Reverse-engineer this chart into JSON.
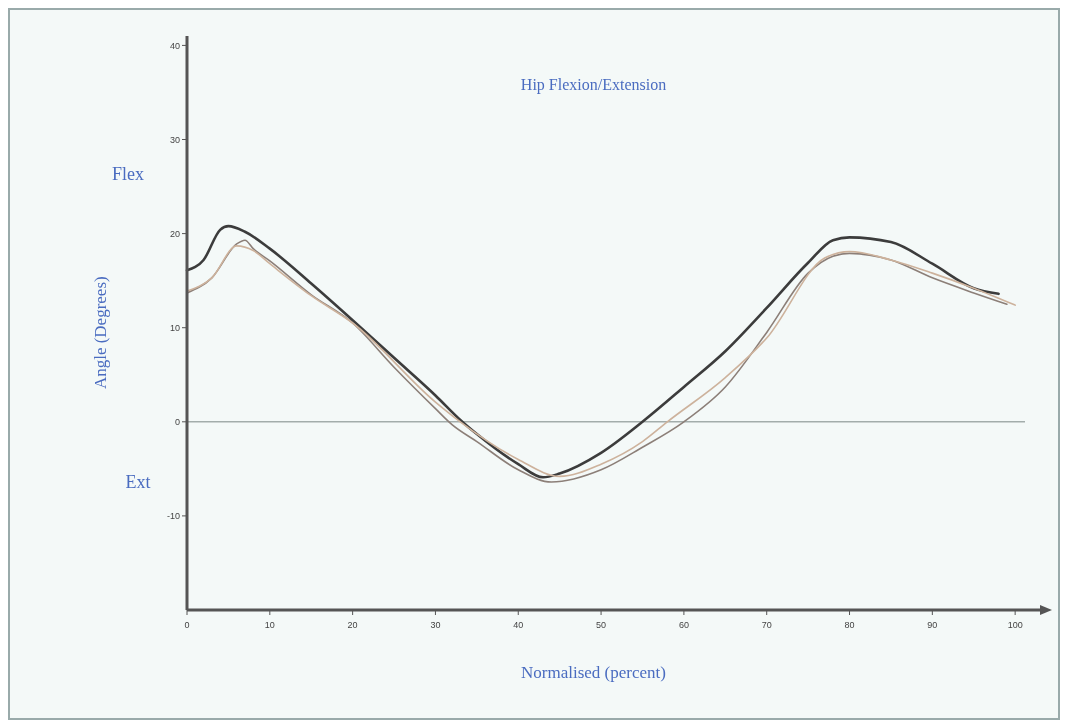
{
  "chart_data": {
    "type": "line",
    "title": "Hip Flexion/Extension",
    "xlabel": "Normalised (percent)",
    "ylabel": "Angle (Degrees)",
    "annotations": [
      "Flex",
      "Ext"
    ],
    "xlim": [
      0,
      103
    ],
    "xticks": [
      0,
      10,
      20,
      30,
      40,
      50,
      60,
      70,
      80,
      90,
      100
    ],
    "ylim": [
      -20,
      41
    ],
    "yticks": [
      -10,
      0,
      10,
      20,
      30,
      40
    ],
    "ref_lines": [
      {
        "axis": "y",
        "value": 0,
        "color": "#a3adab"
      }
    ],
    "grid": false,
    "marker": "none",
    "line_style": "solid",
    "series": [
      {
        "color": "#3c3c3c",
        "x": [
          0,
          2,
          4,
          5,
          7,
          10,
          15,
          20,
          25,
          30,
          33,
          35,
          40,
          43,
          45,
          50,
          55,
          60,
          65,
          70,
          75,
          78,
          80,
          85,
          90,
          95,
          98
        ],
        "values": [
          16.1,
          17.2,
          20.4,
          20.8,
          20.2,
          18.4,
          14.7,
          10.8,
          6.8,
          2.8,
          0.2,
          -1.3,
          -4.5,
          -5.9,
          -5.5,
          -3.3,
          0,
          3.7,
          7.5,
          12.1,
          16.9,
          19.3,
          19.6,
          19.1,
          16.8,
          14.2,
          13.6
        ]
      },
      {
        "color": "#8c7f78",
        "x": [
          0,
          3,
          6,
          7,
          8,
          10,
          15,
          20,
          25,
          30,
          32,
          35,
          40,
          44,
          50,
          55,
          60,
          65,
          70,
          75,
          78,
          80,
          85,
          90,
          95,
          99
        ],
        "values": [
          13.7,
          15.3,
          18.9,
          19.3,
          18.4,
          17.1,
          13.5,
          10.5,
          5.8,
          1.4,
          -0.3,
          -2.1,
          -5.1,
          -6.4,
          -5.1,
          -2.7,
          0,
          3.7,
          9.5,
          15.8,
          17.6,
          17.9,
          17.2,
          15.3,
          13.7,
          12.5
        ]
      },
      {
        "color": "#cdb29c",
        "x": [
          0,
          3,
          6,
          8,
          10,
          15,
          20,
          30,
          33,
          40,
          45,
          50,
          55,
          58,
          65,
          70,
          77,
          80,
          85,
          90,
          95,
          100
        ],
        "values": [
          13.9,
          15.3,
          18.7,
          18.2,
          16.8,
          13.4,
          10.5,
          2.1,
          0,
          -4,
          -5.8,
          -4.5,
          -2.1,
          0,
          4.7,
          8.9,
          17.4,
          18.1,
          17.2,
          15.8,
          14.2,
          12.4
        ]
      }
    ]
  }
}
